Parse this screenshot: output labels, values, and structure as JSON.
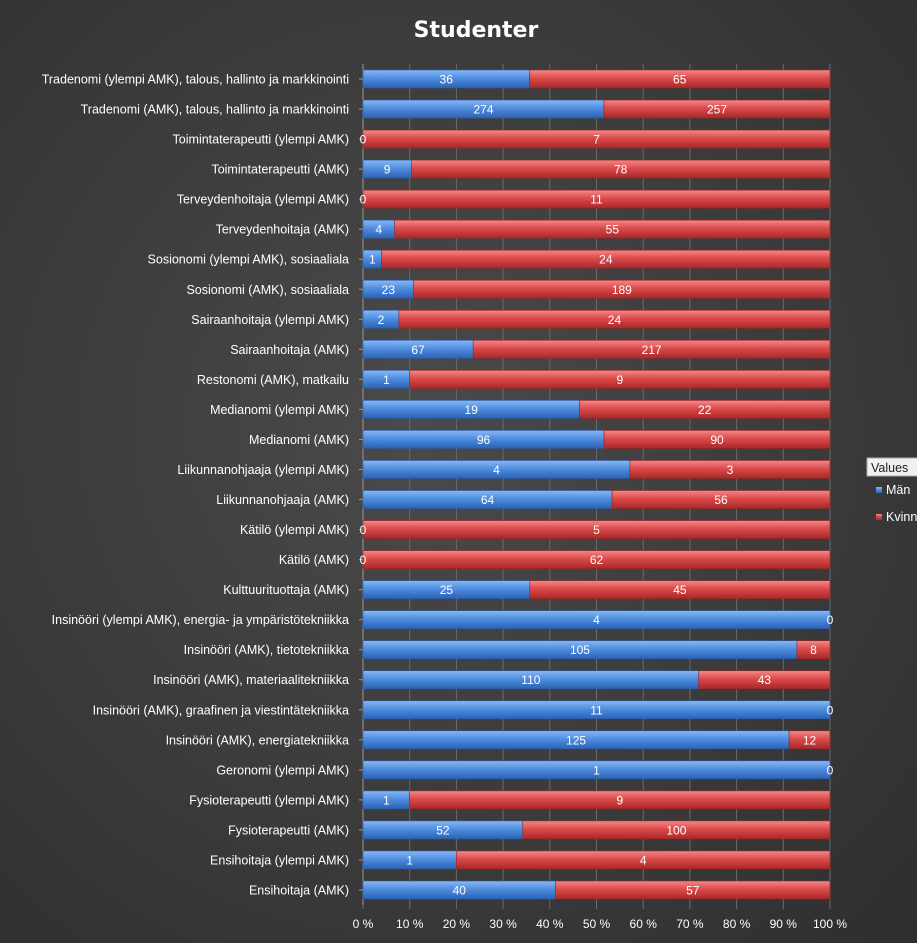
{
  "chart_data": {
    "type": "bar",
    "orientation": "horizontal",
    "stacked": "percent",
    "title": "Studenter",
    "categories": [
      "Tradenomi (ylempi AMK), talous, hallinto ja markkinointi",
      "Tradenomi (AMK), talous, hallinto ja markkinointi",
      "Toimintaterapeutti (ylempi AMK)",
      "Toimintaterapeutti (AMK)",
      "Terveydenhoitaja (ylempi AMK)",
      "Terveydenhoitaja (AMK)",
      "Sosionomi (ylempi AMK), sosiaaliala",
      "Sosionomi (AMK), sosiaaliala",
      "Sairaanhoitaja (ylempi AMK)",
      "Sairaanhoitaja (AMK)",
      "Restonomi (AMK), matkailu",
      "Medianomi (ylempi AMK)",
      "Medianomi (AMK)",
      "Liikunnanohjaaja (ylempi AMK)",
      "Liikunnanohjaaja (AMK)",
      "Kätilö (ylempi AMK)",
      "Kätilö (AMK)",
      "Kulttuurituottaja (AMK)",
      "Insinööri (ylempi AMK), energia- ja ympäristötekniikka",
      "Insinööri (AMK), tietotekniikka",
      "Insinööri (AMK), materiaalitekniikka",
      "Insinööri (AMK), graafinen ja viestintätekniikka",
      "Insinööri (AMK), energiatekniikka",
      "Geronomi (ylempi AMK)",
      "Fysioterapeutti (ylempi AMK)",
      "Fysioterapeutti (AMK)",
      "Ensihoitaja (ylempi AMK)",
      "Ensihoitaja (AMK)"
    ],
    "series": [
      {
        "name": "Män",
        "color": "#4a86d8",
        "values": [
          36,
          274,
          0,
          9,
          0,
          4,
          1,
          23,
          2,
          67,
          1,
          19,
          96,
          4,
          64,
          0,
          0,
          25,
          4,
          105,
          110,
          11,
          125,
          1,
          1,
          52,
          1,
          40
        ]
      },
      {
        "name": "Kvinnor",
        "color": "#d84a4a",
        "values": [
          65,
          257,
          7,
          78,
          11,
          55,
          24,
          189,
          24,
          217,
          9,
          22,
          90,
          3,
          56,
          5,
          62,
          45,
          0,
          8,
          43,
          0,
          12,
          0,
          9,
          100,
          4,
          57
        ]
      }
    ],
    "x_ticks": [
      "0 %",
      "10 %",
      "20 %",
      "30 %",
      "40 %",
      "50 %",
      "60 %",
      "70 %",
      "80 %",
      "90 %",
      "100 %"
    ],
    "xlim": [
      0,
      100
    ],
    "grid": true,
    "legend": {
      "title": "Values",
      "position": "right",
      "entries": [
        "Män",
        "Kvinnor"
      ]
    }
  }
}
